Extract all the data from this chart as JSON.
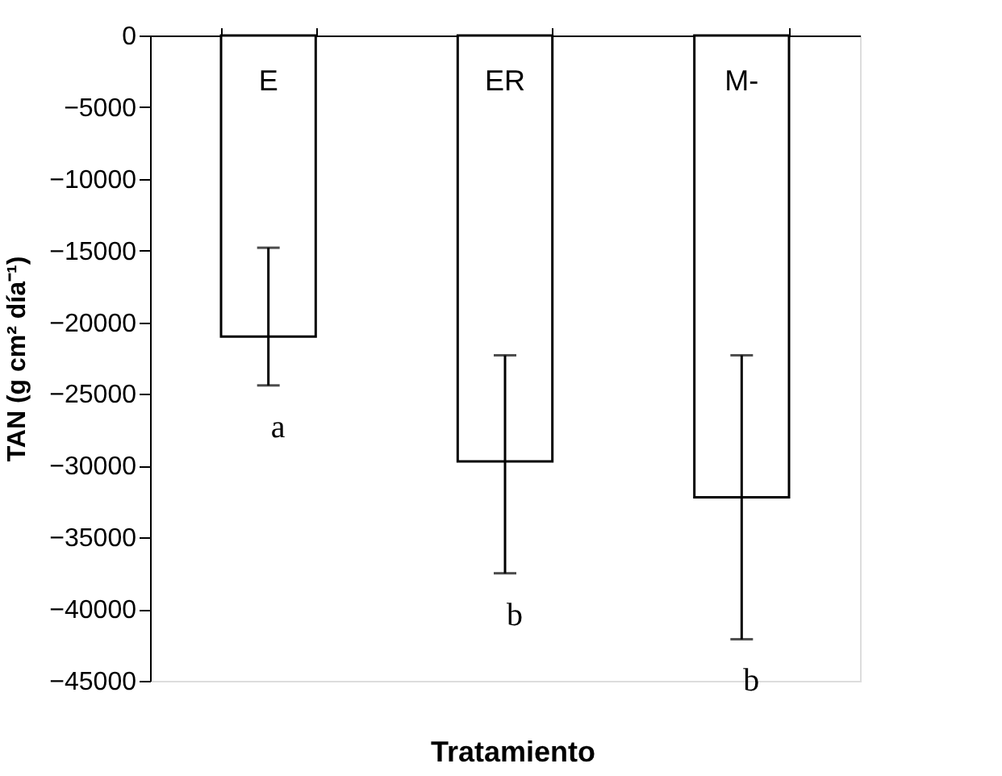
{
  "chart_data": {
    "type": "bar",
    "xlabel": "Tratamiento",
    "ylabel": "TAN (g cm² día⁻¹)",
    "categories": [
      "E",
      "ER",
      "M-"
    ],
    "values": [
      -21000,
      -29700,
      -32200
    ],
    "errors": [
      [
        -24400,
        -14800
      ],
      [
        -37500,
        -22300
      ],
      [
        -42100,
        -22300
      ]
    ],
    "color": "#ffffff",
    "ylim": [
      -45000,
      0
    ],
    "yticks": [
      0,
      -5000,
      -10000,
      -15000,
      -20000,
      -25000,
      -30000,
      -35000,
      -40000,
      -45000
    ],
    "tick_labels": "y",
    "grid": false,
    "annotations": [
      "a",
      "b",
      "b"
    ]
  }
}
